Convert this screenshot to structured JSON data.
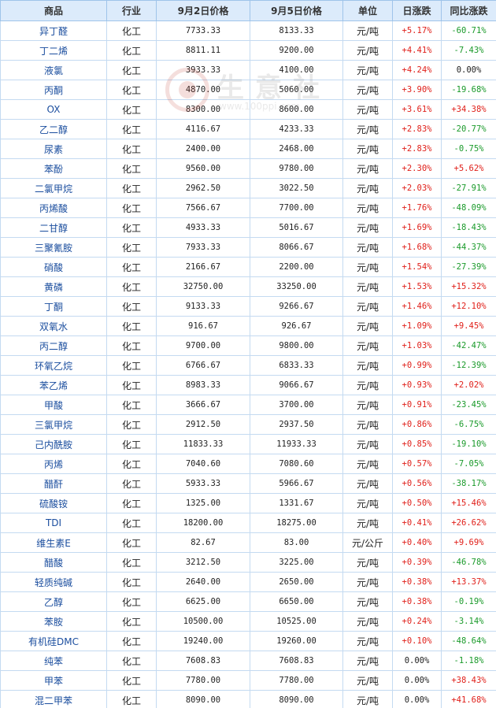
{
  "table": {
    "headers": [
      "商品",
      "行业",
      "9月2日价格",
      "9月5日价格",
      "单位",
      "日涨跌",
      "同比涨跌"
    ],
    "rows": [
      [
        "异丁醛",
        "化工",
        "7733.33",
        "8133.33",
        "元/吨",
        "+5.17%",
        "-60.71%"
      ],
      [
        "丁二烯",
        "化工",
        "8811.11",
        "9200.00",
        "元/吨",
        "+4.41%",
        "-7.43%"
      ],
      [
        "液氯",
        "化工",
        "3933.33",
        "4100.00",
        "元/吨",
        "+4.24%",
        "0.00%"
      ],
      [
        "丙酮",
        "化工",
        "4870.00",
        "5060.00",
        "元/吨",
        "+3.90%",
        "-19.68%"
      ],
      [
        "OX",
        "化工",
        "8300.00",
        "8600.00",
        "元/吨",
        "+3.61%",
        "+34.38%"
      ],
      [
        "乙二醇",
        "化工",
        "4116.67",
        "4233.33",
        "元/吨",
        "+2.83%",
        "-20.77%"
      ],
      [
        "尿素",
        "化工",
        "2400.00",
        "2468.00",
        "元/吨",
        "+2.83%",
        "-0.75%"
      ],
      [
        "苯酚",
        "化工",
        "9560.00",
        "9780.00",
        "元/吨",
        "+2.30%",
        "+5.62%"
      ],
      [
        "二氯甲烷",
        "化工",
        "2962.50",
        "3022.50",
        "元/吨",
        "+2.03%",
        "-27.91%"
      ],
      [
        "丙烯酸",
        "化工",
        "7566.67",
        "7700.00",
        "元/吨",
        "+1.76%",
        "-48.09%"
      ],
      [
        "二甘醇",
        "化工",
        "4933.33",
        "5016.67",
        "元/吨",
        "+1.69%",
        "-18.43%"
      ],
      [
        "三聚氰胺",
        "化工",
        "7933.33",
        "8066.67",
        "元/吨",
        "+1.68%",
        "-44.37%"
      ],
      [
        "硝酸",
        "化工",
        "2166.67",
        "2200.00",
        "元/吨",
        "+1.54%",
        "-27.39%"
      ],
      [
        "黄磷",
        "化工",
        "32750.00",
        "33250.00",
        "元/吨",
        "+1.53%",
        "+15.32%"
      ],
      [
        "丁酮",
        "化工",
        "9133.33",
        "9266.67",
        "元/吨",
        "+1.46%",
        "+12.10%"
      ],
      [
        "双氧水",
        "化工",
        "916.67",
        "926.67",
        "元/吨",
        "+1.09%",
        "+9.45%"
      ],
      [
        "丙二醇",
        "化工",
        "9700.00",
        "9800.00",
        "元/吨",
        "+1.03%",
        "-42.47%"
      ],
      [
        "环氧乙烷",
        "化工",
        "6766.67",
        "6833.33",
        "元/吨",
        "+0.99%",
        "-12.39%"
      ],
      [
        "苯乙烯",
        "化工",
        "8983.33",
        "9066.67",
        "元/吨",
        "+0.93%",
        "+2.02%"
      ],
      [
        "甲酸",
        "化工",
        "3666.67",
        "3700.00",
        "元/吨",
        "+0.91%",
        "-23.45%"
      ],
      [
        "三氯甲烷",
        "化工",
        "2912.50",
        "2937.50",
        "元/吨",
        "+0.86%",
        "-6.75%"
      ],
      [
        "己内酰胺",
        "化工",
        "11833.33",
        "11933.33",
        "元/吨",
        "+0.85%",
        "-19.10%"
      ],
      [
        "丙烯",
        "化工",
        "7040.60",
        "7080.60",
        "元/吨",
        "+0.57%",
        "-7.05%"
      ],
      [
        "醋酐",
        "化工",
        "5933.33",
        "5966.67",
        "元/吨",
        "+0.56%",
        "-38.17%"
      ],
      [
        "硫酸铵",
        "化工",
        "1325.00",
        "1331.67",
        "元/吨",
        "+0.50%",
        "+15.46%"
      ],
      [
        "TDI",
        "化工",
        "18200.00",
        "18275.00",
        "元/吨",
        "+0.41%",
        "+26.62%"
      ],
      [
        "维生素E",
        "化工",
        "82.67",
        "83.00",
        "元/公斤",
        "+0.40%",
        "+9.69%"
      ],
      [
        "醋酸",
        "化工",
        "3212.50",
        "3225.00",
        "元/吨",
        "+0.39%",
        "-46.78%"
      ],
      [
        "轻质纯碱",
        "化工",
        "2640.00",
        "2650.00",
        "元/吨",
        "+0.38%",
        "+13.37%"
      ],
      [
        "乙醇",
        "化工",
        "6625.00",
        "6650.00",
        "元/吨",
        "+0.38%",
        "-0.19%"
      ],
      [
        "苯胺",
        "化工",
        "10500.00",
        "10525.00",
        "元/吨",
        "+0.24%",
        "-3.14%"
      ],
      [
        "有机硅DMC",
        "化工",
        "19240.00",
        "19260.00",
        "元/吨",
        "+0.10%",
        "-48.64%"
      ],
      [
        "纯苯",
        "化工",
        "7608.83",
        "7608.83",
        "元/吨",
        "0.00%",
        "-1.18%"
      ],
      [
        "甲苯",
        "化工",
        "7780.00",
        "7780.00",
        "元/吨",
        "0.00%",
        "+38.43%"
      ],
      [
        "混二甲苯",
        "化工",
        "8090.00",
        "8090.00",
        "元/吨",
        "0.00%",
        "+41.68%"
      ]
    ]
  },
  "watermark": {
    "text": "生意社",
    "url": "www.100ppi.com"
  },
  "colors": {
    "rise": "#e0201a",
    "fall": "#1a9a2a",
    "header_bg": "#dcebfb",
    "border": "#c4daf1",
    "name_text": "#1a4d9e"
  }
}
